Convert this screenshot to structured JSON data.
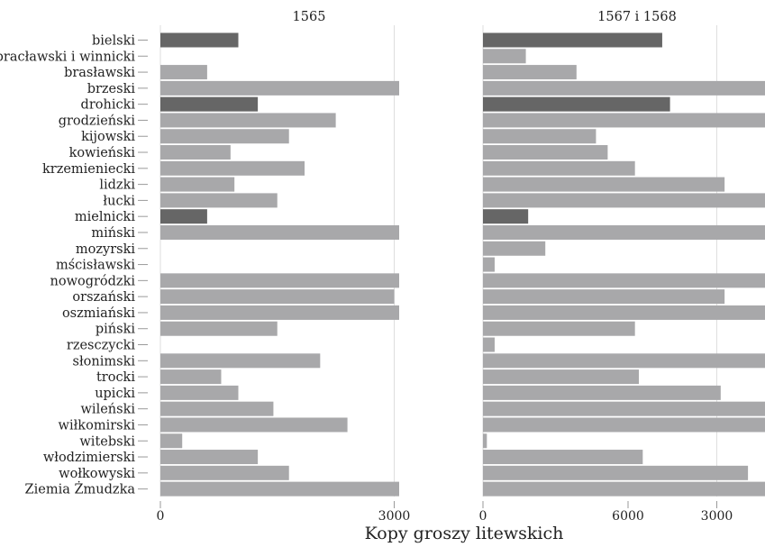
{
  "chart_data": {
    "type": "bar",
    "orientation": "horizontal",
    "xlabel": "Kopy groszy litewskich",
    "xlim": [
      0,
      10800
    ],
    "xticks": [
      "0",
      "3000",
      "6000",
      "9000"
    ],
    "grid": true,
    "categories": [
      "bielski",
      "bracławski i winnicki",
      "brasławski",
      "brzeski",
      "drohicki",
      "grodzieński",
      "kijowski",
      "kowieński",
      "krzemieniecki",
      "lidzki",
      "łucki",
      "mielnicki",
      "miński",
      "mozyrski",
      "mścisławski",
      "nowogródzki",
      "orszański",
      "oszmiański",
      "piński",
      "rzesczycki",
      "słonimski",
      "trocki",
      "upicki",
      "wileński",
      "wiłkomirski",
      "witebski",
      "włodzimierski",
      "wołkowyski",
      "Ziemia Żmudzka"
    ],
    "highlighted": [
      "bielski",
      "drohicki",
      "mielnicki"
    ],
    "colors": {
      "highlight": "#666666",
      "default": "#a8a8aa",
      "grid": "#dedede"
    },
    "panels": [
      {
        "title": "1565",
        "values": [
          1000,
          0,
          600,
          3850,
          1250,
          2250,
          1650,
          900,
          1850,
          950,
          1500,
          600,
          3650,
          0,
          0,
          4550,
          3000,
          3350,
          1500,
          0,
          2050,
          780,
          1000,
          1450,
          2400,
          280,
          1250,
          1650,
          8150
        ]
      },
      {
        "title": "1567 i 1568",
        "values": [
          2300,
          550,
          1200,
          6700,
          2400,
          4600,
          1450,
          1600,
          1950,
          3100,
          7150,
          580,
          6250,
          800,
          150,
          11000,
          3100,
          7400,
          1950,
          150,
          3950,
          2000,
          3050,
          4000,
          5750,
          50,
          2050,
          3400,
          5650
        ]
      }
    ]
  }
}
